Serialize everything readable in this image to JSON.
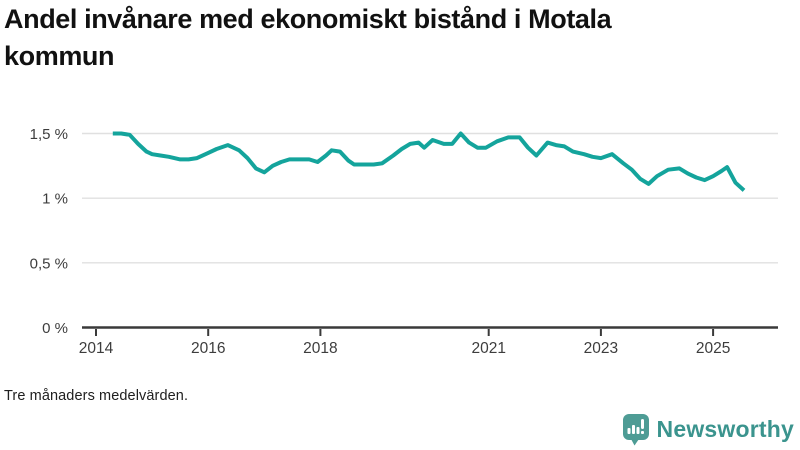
{
  "header": {
    "title_lines": [
      "Andel invånare med ekonomiskt bistånd i Motala",
      "kommun"
    ]
  },
  "chart_data": {
    "type": "line",
    "title": "Andel invånare med ekonomiskt bistånd i Motala kommun",
    "unit": "%",
    "grid": "horizontal",
    "legend": "none",
    "xlim": [
      2013.77,
      2026.16
    ],
    "ylim": [
      0,
      1.55
    ],
    "x_ticks": [
      {
        "label": "2014",
        "x": 2014
      },
      {
        "label": "2016",
        "x": 2016
      },
      {
        "label": "2018",
        "x": 2018
      },
      {
        "label": "2021",
        "x": 2021
      },
      {
        "label": "2023",
        "x": 2023
      },
      {
        "label": "2025",
        "x": 2025
      }
    ],
    "y_ticks": [
      {
        "label": "1,5 %",
        "value": 1.5
      },
      {
        "label": "1 %",
        "value": 1.0
      },
      {
        "label": "0,5 %",
        "value": 0.5
      },
      {
        "label": "0 %",
        "value": 0
      }
    ],
    "series": [
      {
        "name": "Andel invånare med ekonomiskt bistånd",
        "color": "#14A49C",
        "points": [
          [
            2014.3,
            1.5
          ],
          [
            2014.45,
            1.5
          ],
          [
            2014.6,
            1.49
          ],
          [
            2014.75,
            1.42
          ],
          [
            2014.9,
            1.36
          ],
          [
            2015.0,
            1.34
          ],
          [
            2015.15,
            1.33
          ],
          [
            2015.3,
            1.32
          ],
          [
            2015.5,
            1.3
          ],
          [
            2015.65,
            1.3
          ],
          [
            2015.8,
            1.31
          ],
          [
            2016.0,
            1.35
          ],
          [
            2016.15,
            1.38
          ],
          [
            2016.35,
            1.41
          ],
          [
            2016.55,
            1.37
          ],
          [
            2016.7,
            1.31
          ],
          [
            2016.85,
            1.23
          ],
          [
            2017.0,
            1.2
          ],
          [
            2017.15,
            1.25
          ],
          [
            2017.3,
            1.28
          ],
          [
            2017.45,
            1.3
          ],
          [
            2017.65,
            1.3
          ],
          [
            2017.8,
            1.3
          ],
          [
            2017.95,
            1.28
          ],
          [
            2018.1,
            1.33
          ],
          [
            2018.2,
            1.37
          ],
          [
            2018.35,
            1.36
          ],
          [
            2018.5,
            1.29
          ],
          [
            2018.6,
            1.26
          ],
          [
            2018.8,
            1.26
          ],
          [
            2018.95,
            1.26
          ],
          [
            2019.1,
            1.27
          ],
          [
            2019.3,
            1.33
          ],
          [
            2019.45,
            1.38
          ],
          [
            2019.6,
            1.42
          ],
          [
            2019.75,
            1.43
          ],
          [
            2019.85,
            1.39
          ],
          [
            2020.0,
            1.45
          ],
          [
            2020.2,
            1.42
          ],
          [
            2020.35,
            1.42
          ],
          [
            2020.5,
            1.5
          ],
          [
            2020.65,
            1.43
          ],
          [
            2020.8,
            1.39
          ],
          [
            2020.95,
            1.39
          ],
          [
            2021.15,
            1.44
          ],
          [
            2021.35,
            1.47
          ],
          [
            2021.55,
            1.47
          ],
          [
            2021.7,
            1.39
          ],
          [
            2021.85,
            1.33
          ],
          [
            2022.05,
            1.43
          ],
          [
            2022.2,
            1.41
          ],
          [
            2022.35,
            1.4
          ],
          [
            2022.5,
            1.36
          ],
          [
            2022.7,
            1.34
          ],
          [
            2022.85,
            1.32
          ],
          [
            2023.0,
            1.31
          ],
          [
            2023.2,
            1.34
          ],
          [
            2023.4,
            1.27
          ],
          [
            2023.55,
            1.22
          ],
          [
            2023.7,
            1.15
          ],
          [
            2023.85,
            1.11
          ],
          [
            2024.0,
            1.17
          ],
          [
            2024.2,
            1.22
          ],
          [
            2024.4,
            1.23
          ],
          [
            2024.55,
            1.19
          ],
          [
            2024.7,
            1.16
          ],
          [
            2024.85,
            1.14
          ],
          [
            2025.0,
            1.17
          ],
          [
            2025.15,
            1.21
          ],
          [
            2025.25,
            1.24
          ],
          [
            2025.4,
            1.12
          ],
          [
            2025.55,
            1.06
          ]
        ]
      }
    ]
  },
  "footer": {
    "note": "Tre månaders medelvärden.",
    "brand": "Newsworthy",
    "brand_color": "#3B948E",
    "brand_icon": "bar-chart-speech-bubble-icon"
  },
  "colors": {
    "line": "#14A49C",
    "axis": "#3A3A3A",
    "grid": "#E0E0E0",
    "tick_text": "#3D3D3D",
    "title_text": "#111111",
    "logo_fill": "#4E9C95"
  }
}
